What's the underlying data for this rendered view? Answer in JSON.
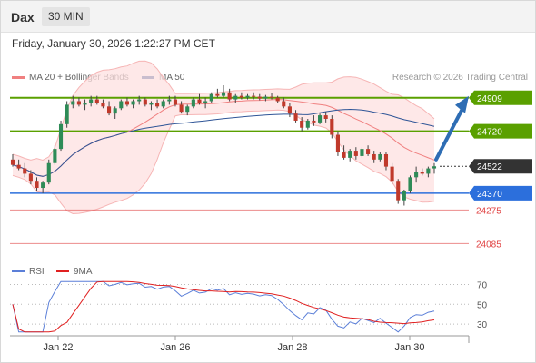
{
  "header": {
    "instrument": "Dax",
    "timeframe": "30 MIN"
  },
  "datetime": "Friday, January 30, 2026 1:22:27 PM CET",
  "legend": {
    "bollinger": {
      "label": "MA 20 + Bollinger Bands",
      "color": "#f08080"
    },
    "ma50": {
      "label": "MA 50",
      "color": "#2f5597"
    }
  },
  "copyright": "Research © 2026 Trading Central",
  "colors": {
    "up": "#2e8b57",
    "down": "#c0392b",
    "resistance": "#5aa000",
    "support": "#2c6fdc",
    "target": "#e04040",
    "arrow": "#2e6db4",
    "last_price": "#333333"
  },
  "chart_data": [
    {
      "type": "candlestick",
      "title": "",
      "x_ticks": [
        "Jan 22",
        "Jan 26",
        "Jan 28",
        "Jan 30"
      ],
      "ylim": [
        24000,
        24990
      ],
      "levels": [
        {
          "kind": "resistance",
          "value": 24909,
          "label": "24909"
        },
        {
          "kind": "resistance",
          "value": 24720,
          "label": "24720"
        },
        {
          "kind": "last_price",
          "value": 24522,
          "label": "24522"
        },
        {
          "kind": "support",
          "value": 24370,
          "label": "24370"
        },
        {
          "kind": "target",
          "value": 24275,
          "label": "24275"
        },
        {
          "kind": "target",
          "value": 24085,
          "label": "24085"
        }
      ],
      "forecast": {
        "from": 24560,
        "to": 24909
      },
      "candles": [
        [
          24560,
          24590,
          24520,
          24530
        ],
        [
          24530,
          24560,
          24500,
          24510
        ],
        [
          24510,
          24540,
          24460,
          24480
        ],
        [
          24480,
          24500,
          24420,
          24440
        ],
        [
          24440,
          24460,
          24380,
          24400
        ],
        [
          24400,
          24440,
          24370,
          24430
        ],
        [
          24430,
          24560,
          24420,
          24540
        ],
        [
          24540,
          24640,
          24530,
          24620
        ],
        [
          24620,
          24780,
          24610,
          24760
        ],
        [
          24760,
          24890,
          24740,
          24870
        ],
        [
          24870,
          24920,
          24850,
          24890
        ],
        [
          24890,
          24910,
          24860,
          24870
        ],
        [
          24870,
          24900,
          24840,
          24880
        ],
        [
          24880,
          24920,
          24860,
          24900
        ],
        [
          24900,
          24920,
          24870,
          24880
        ],
        [
          24880,
          24900,
          24850,
          24860
        ],
        [
          24860,
          24890,
          24810,
          24820
        ],
        [
          24820,
          24860,
          24790,
          24850
        ],
        [
          24850,
          24900,
          24840,
          24890
        ],
        [
          24890,
          24910,
          24860,
          24870
        ],
        [
          24870,
          24900,
          24850,
          24890
        ],
        [
          24890,
          24920,
          24870,
          24900
        ],
        [
          24900,
          24910,
          24860,
          24870
        ],
        [
          24870,
          24890,
          24840,
          24880
        ],
        [
          24880,
          24900,
          24850,
          24860
        ],
        [
          24860,
          24900,
          24850,
          24890
        ],
        [
          24890,
          24920,
          24870,
          24900
        ],
        [
          24900,
          24920,
          24860,
          24870
        ],
        [
          24870,
          24890,
          24820,
          24830
        ],
        [
          24830,
          24870,
          24810,
          24860
        ],
        [
          24860,
          24910,
          24850,
          24900
        ],
        [
          24900,
          24930,
          24870,
          24880
        ],
        [
          24880,
          24910,
          24850,
          24890
        ],
        [
          24890,
          24940,
          24880,
          24930
        ],
        [
          24930,
          24960,
          24910,
          24920
        ],
        [
          24920,
          24980,
          24910,
          24940
        ],
        [
          24940,
          24960,
          24890,
          24900
        ],
        [
          24900,
          24930,
          24880,
          24920
        ],
        [
          24920,
          24940,
          24900,
          24910
        ],
        [
          24910,
          24930,
          24900,
          24920
        ],
        [
          24920,
          24940,
          24900,
          24915
        ],
        [
          24915,
          24930,
          24895,
          24905
        ],
        [
          24905,
          24925,
          24890,
          24915
        ],
        [
          24915,
          24935,
          24900,
          24910
        ],
        [
          24910,
          24920,
          24880,
          24890
        ],
        [
          24890,
          24910,
          24850,
          24860
        ],
        [
          24860,
          24880,
          24800,
          24820
        ],
        [
          24820,
          24840,
          24770,
          24780
        ],
        [
          24780,
          24800,
          24720,
          24740
        ],
        [
          24740,
          24790,
          24730,
          24780
        ],
        [
          24780,
          24810,
          24750,
          24770
        ],
        [
          24770,
          24820,
          24760,
          24810
        ],
        [
          24810,
          24830,
          24770,
          24790
        ],
        [
          24790,
          24810,
          24680,
          24700
        ],
        [
          24700,
          24720,
          24580,
          24600
        ],
        [
          24600,
          24640,
          24560,
          24570
        ],
        [
          24570,
          24620,
          24550,
          24610
        ],
        [
          24610,
          24630,
          24560,
          24580
        ],
        [
          24580,
          24630,
          24570,
          24620
        ],
        [
          24620,
          24640,
          24580,
          24590
        ],
        [
          24590,
          24610,
          24540,
          24560
        ],
        [
          24560,
          24600,
          24550,
          24590
        ],
        [
          24590,
          24600,
          24500,
          24520
        ],
        [
          24520,
          24540,
          24420,
          24440
        ],
        [
          24440,
          24450,
          24310,
          24330
        ],
        [
          24330,
          24390,
          24300,
          24380
        ],
        [
          24380,
          24470,
          24370,
          24460
        ],
        [
          24460,
          24520,
          24430,
          24490
        ],
        [
          24490,
          24510,
          24470,
          24480
        ],
        [
          24480,
          24520,
          24460,
          24510
        ],
        [
          24510,
          24540,
          24480,
          24522
        ]
      ]
    },
    {
      "type": "line",
      "title": "",
      "series": [
        {
          "name": "RSI",
          "color": "#5b7fd8"
        },
        {
          "name": "9MA",
          "color": "#e02020"
        }
      ],
      "yticks": [
        30,
        50,
        70
      ],
      "ylim": [
        20,
        75
      ]
    }
  ]
}
